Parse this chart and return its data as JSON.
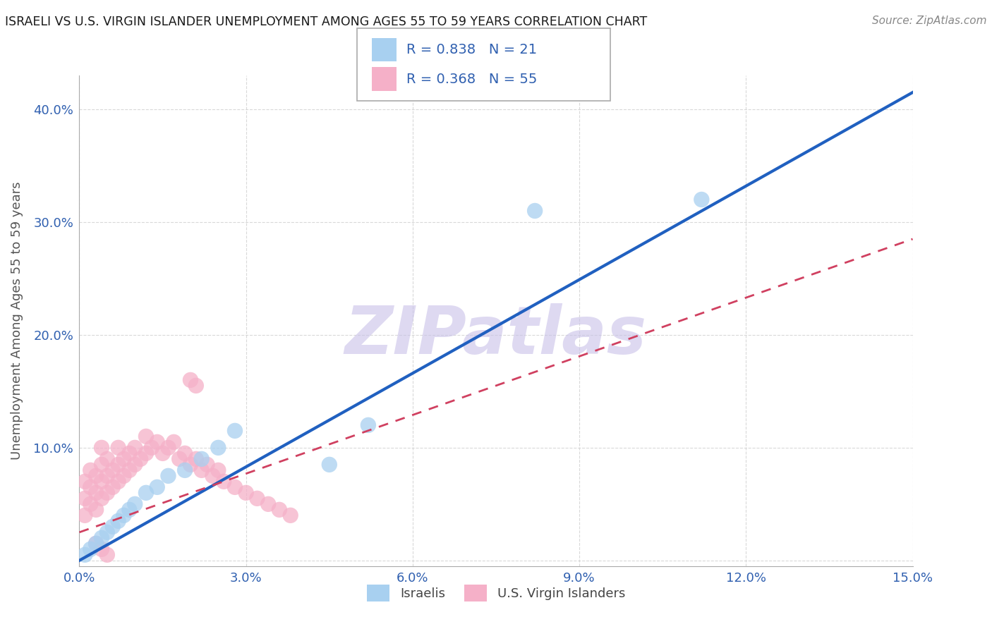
{
  "title": "ISRAELI VS U.S. VIRGIN ISLANDER UNEMPLOYMENT AMONG AGES 55 TO 59 YEARS CORRELATION CHART",
  "source": "Source: ZipAtlas.com",
  "ylabel": "Unemployment Among Ages 55 to 59 years",
  "xlim": [
    0.0,
    0.15
  ],
  "ylim": [
    -0.005,
    0.43
  ],
  "xticks": [
    0.0,
    0.03,
    0.06,
    0.09,
    0.12,
    0.15
  ],
  "xtick_labels": [
    "0.0%",
    "3.0%",
    "6.0%",
    "9.0%",
    "12.0%",
    "15.0%"
  ],
  "yticks": [
    0.0,
    0.1,
    0.2,
    0.3,
    0.4
  ],
  "ytick_labels": [
    "",
    "10.0%",
    "20.0%",
    "30.0%",
    "40.0%"
  ],
  "israeli_x": [
    0.001,
    0.002,
    0.003,
    0.004,
    0.005,
    0.006,
    0.007,
    0.008,
    0.009,
    0.01,
    0.012,
    0.014,
    0.016,
    0.019,
    0.022,
    0.025,
    0.028,
    0.045,
    0.052,
    0.082,
    0.112
  ],
  "israeli_y": [
    0.005,
    0.01,
    0.015,
    0.02,
    0.025,
    0.03,
    0.035,
    0.04,
    0.045,
    0.05,
    0.06,
    0.065,
    0.075,
    0.08,
    0.09,
    0.1,
    0.115,
    0.085,
    0.12,
    0.31,
    0.32
  ],
  "usvi_x": [
    0.001,
    0.001,
    0.001,
    0.002,
    0.002,
    0.002,
    0.003,
    0.003,
    0.003,
    0.004,
    0.004,
    0.004,
    0.004,
    0.005,
    0.005,
    0.005,
    0.006,
    0.006,
    0.007,
    0.007,
    0.007,
    0.008,
    0.008,
    0.009,
    0.009,
    0.01,
    0.01,
    0.011,
    0.012,
    0.012,
    0.013,
    0.014,
    0.015,
    0.016,
    0.017,
    0.018,
    0.019,
    0.02,
    0.021,
    0.022,
    0.023,
    0.024,
    0.025,
    0.026,
    0.028,
    0.03,
    0.032,
    0.034,
    0.036,
    0.038,
    0.02,
    0.021,
    0.003,
    0.004,
    0.005
  ],
  "usvi_y": [
    0.04,
    0.055,
    0.07,
    0.05,
    0.065,
    0.08,
    0.045,
    0.06,
    0.075,
    0.055,
    0.07,
    0.085,
    0.1,
    0.06,
    0.075,
    0.09,
    0.065,
    0.08,
    0.07,
    0.085,
    0.1,
    0.075,
    0.09,
    0.08,
    0.095,
    0.085,
    0.1,
    0.09,
    0.095,
    0.11,
    0.1,
    0.105,
    0.095,
    0.1,
    0.105,
    0.09,
    0.095,
    0.085,
    0.09,
    0.08,
    0.085,
    0.075,
    0.08,
    0.07,
    0.065,
    0.06,
    0.055,
    0.05,
    0.045,
    0.04,
    0.16,
    0.155,
    0.015,
    0.01,
    0.005
  ],
  "israeli_color": "#a8d0f0",
  "usvi_color": "#f5b0c8",
  "israeli_line_color": "#2060c0",
  "usvi_line_color": "#d04060",
  "israeli_line_x0": 0.0,
  "israeli_line_y0": 0.0,
  "israeli_line_x1": 0.15,
  "israeli_line_y1": 0.415,
  "usvi_line_x0": 0.0,
  "usvi_line_y0": 0.025,
  "usvi_line_x1": 0.15,
  "usvi_line_y1": 0.285,
  "legend_r_israeli": "R = 0.838",
  "legend_n_israeli": "N = 21",
  "legend_r_usvi": "R = 0.368",
  "legend_n_usvi": "N = 55",
  "legend_label_israeli": "Israelis",
  "legend_label_usvi": "U.S. Virgin Islanders",
  "watermark": "ZIPatlas",
  "watermark_color": "#c8c0e8",
  "title_color": "#1a1a1a",
  "axis_label_color": "#555555",
  "tick_color": "#3060b0",
  "r_color": "#3060b0",
  "grid_color": "#d0d0d0",
  "background_color": "#ffffff"
}
